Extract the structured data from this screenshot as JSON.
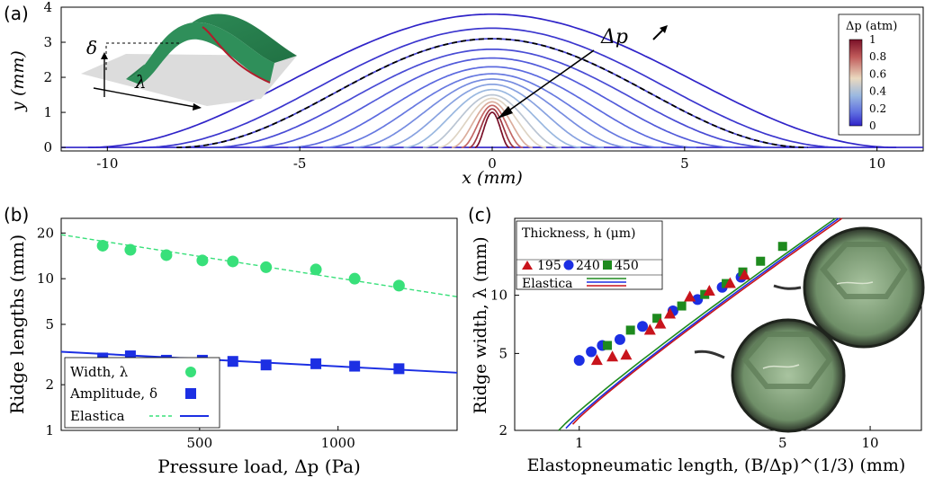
{
  "panels": {
    "a": {
      "letter": "(a)",
      "xlabel": "x (mm)",
      "ylabel": "y (mm)",
      "xticks": [
        "-10",
        "-5",
        "0",
        "5",
        "10"
      ],
      "yticks": [
        "0",
        "1",
        "2",
        "3",
        "4"
      ],
      "annotation": "Δp",
      "inset_labels": {
        "amplitude": "δ",
        "width": "λ"
      },
      "colorbar": {
        "title": "Δp (atm)",
        "ticks": [
          "1",
          "0.8",
          "0.6",
          "0.4",
          "0.2",
          "0"
        ],
        "colors": [
          "#7a1028",
          "#c05a5a",
          "#ead9bf",
          "#9ab8e0",
          "#5e6ee0",
          "#2f23c8"
        ]
      }
    },
    "b": {
      "letter": "(b)",
      "xlabel": "Pressure load, Δp (Pa)",
      "ylabel": "Ridge lengths (mm)",
      "xticks": [
        "500",
        "1000"
      ],
      "yticks": [
        "1",
        "2",
        "5",
        "10",
        "20"
      ],
      "legend": [
        {
          "label": "Width, λ",
          "marker": "circle",
          "color": "#38e07a"
        },
        {
          "label": "Amplitude, δ",
          "marker": "square",
          "color": "#1c2fe3"
        },
        {
          "label": "Elastica",
          "marker": "lines",
          "colors": [
            "#38e07a",
            "#1c2fe3"
          ]
        }
      ]
    },
    "c": {
      "letter": "(c)",
      "xlabel": "Elastopneumatic length, (B/Δp)^(1/3) (mm)",
      "ylabel": "Ridge width, λ (mm)",
      "xticks": [
        "1",
        "5",
        "10"
      ],
      "yticks": [
        "2",
        "5",
        "10"
      ],
      "legend_title": "Thickness, h (μm)",
      "legend": [
        {
          "label": "195",
          "marker": "triangle",
          "color": "#c8141c"
        },
        {
          "label": "240",
          "marker": "circle",
          "color": "#1c2fe3"
        },
        {
          "label": "450",
          "marker": "square",
          "color": "#1e8a1e"
        }
      ],
      "legend_elastica": "Elastica"
    }
  },
  "chart_data": [
    {
      "type": "line",
      "panel": "a",
      "title": "",
      "xlabel": "x (mm)",
      "ylabel": "y (mm)",
      "xlim": [
        -11.2,
        11.2
      ],
      "ylim": [
        -0.1,
        4.0
      ],
      "series_note_colormap": "Δp (atm) 0 to 1",
      "profiles": [
        {
          "amplitude": 3.8,
          "width": 21.0,
          "dp": 0.0
        },
        {
          "amplitude": 3.4,
          "width": 18.2,
          "dp": 0.05
        },
        {
          "amplitude": 3.1,
          "width": 16.4,
          "dp": 0.08,
          "dashed": true
        },
        {
          "amplitude": 2.8,
          "width": 14.6,
          "dp": 0.11
        },
        {
          "amplitude": 2.55,
          "width": 12.6,
          "dp": 0.15
        },
        {
          "amplitude": 2.3,
          "width": 10.6,
          "dp": 0.19
        },
        {
          "amplitude": 2.1,
          "width": 8.8,
          "dp": 0.23
        },
        {
          "amplitude": 1.95,
          "width": 7.2,
          "dp": 0.28
        },
        {
          "amplitude": 1.8,
          "width": 5.8,
          "dp": 0.34
        },
        {
          "amplitude": 1.65,
          "width": 4.6,
          "dp": 0.4
        },
        {
          "amplitude": 1.5,
          "width": 3.6,
          "dp": 0.48
        },
        {
          "amplitude": 1.4,
          "width": 2.8,
          "dp": 0.57
        },
        {
          "amplitude": 1.3,
          "width": 2.1,
          "dp": 0.67
        },
        {
          "amplitude": 1.2,
          "width": 1.6,
          "dp": 0.78
        },
        {
          "amplitude": 1.1,
          "width": 1.2,
          "dp": 0.9
        },
        {
          "amplitude": 1.0,
          "width": 0.9,
          "dp": 1.0
        }
      ]
    },
    {
      "type": "scatter",
      "panel": "b",
      "xlabel": "Pressure load, Δp (Pa)",
      "ylabel": "Ridge lengths (mm)",
      "xlim": [
        0,
        1430
      ],
      "ylim": [
        1,
        25
      ],
      "yscale": "log",
      "series": [
        {
          "name": "Width, λ",
          "x": [
            150,
            250,
            380,
            510,
            620,
            740,
            920,
            1060,
            1220
          ],
          "y": [
            16.5,
            15.5,
            14.3,
            13.2,
            13.0,
            11.9,
            11.5,
            10.0,
            9.0
          ]
        },
        {
          "name": "Amplitude, δ",
          "x": [
            150,
            250,
            380,
            510,
            620,
            740,
            920,
            1060,
            1220
          ],
          "y": [
            3.0,
            3.1,
            2.9,
            2.9,
            2.85,
            2.7,
            2.75,
            2.65,
            2.55
          ]
        }
      ],
      "fits": [
        {
          "name": "Elastica",
          "x": [
            0,
            1430
          ],
          "y": [
            19.5,
            7.6
          ],
          "style": "dashed"
        },
        {
          "name": "Elastica",
          "x": [
            0,
            1430
          ],
          "y": [
            3.3,
            2.4
          ],
          "style": "solid"
        }
      ]
    },
    {
      "type": "scatter",
      "panel": "c",
      "xlabel": "Elastopneumatic length, (B/Δp)^(1/3) (mm)",
      "ylabel": "Ridge width, λ (mm)",
      "xscale": "log",
      "yscale": "log",
      "xlim": [
        0.6,
        15
      ],
      "ylim": [
        2,
        25
      ],
      "series": [
        {
          "name": "195",
          "x": [
            1.15,
            1.3,
            1.45,
            1.75,
            1.9,
            2.05,
            2.4,
            2.8,
            3.3,
            3.7
          ],
          "y": [
            4.6,
            4.8,
            4.9,
            6.6,
            7.1,
            8.0,
            9.8,
            10.5,
            11.5,
            12.7
          ]
        },
        {
          "name": "240",
          "x": [
            1.0,
            1.1,
            1.2,
            1.38,
            1.65,
            2.1,
            2.55,
            3.1,
            3.6
          ],
          "y": [
            4.6,
            5.1,
            5.5,
            5.9,
            6.9,
            8.3,
            9.5,
            11.0,
            12.4
          ]
        },
        {
          "name": "450",
          "x": [
            1.25,
            1.5,
            1.85,
            2.25,
            2.7,
            3.2,
            3.65,
            4.2,
            5.0
          ],
          "y": [
            5.5,
            6.6,
            7.6,
            8.8,
            10.1,
            11.5,
            13.2,
            15.0,
            17.9
          ]
        }
      ],
      "fits": [
        {
          "name": "195",
          "x": [
            0.95,
            8.0
          ],
          "y": [
            2.15,
            25.0
          ]
        },
        {
          "name": "240",
          "x": [
            0.9,
            7.8
          ],
          "y": [
            2.05,
            25.0
          ]
        },
        {
          "name": "450",
          "x": [
            0.85,
            7.6
          ],
          "y": [
            2.0,
            25.0
          ]
        }
      ]
    }
  ]
}
